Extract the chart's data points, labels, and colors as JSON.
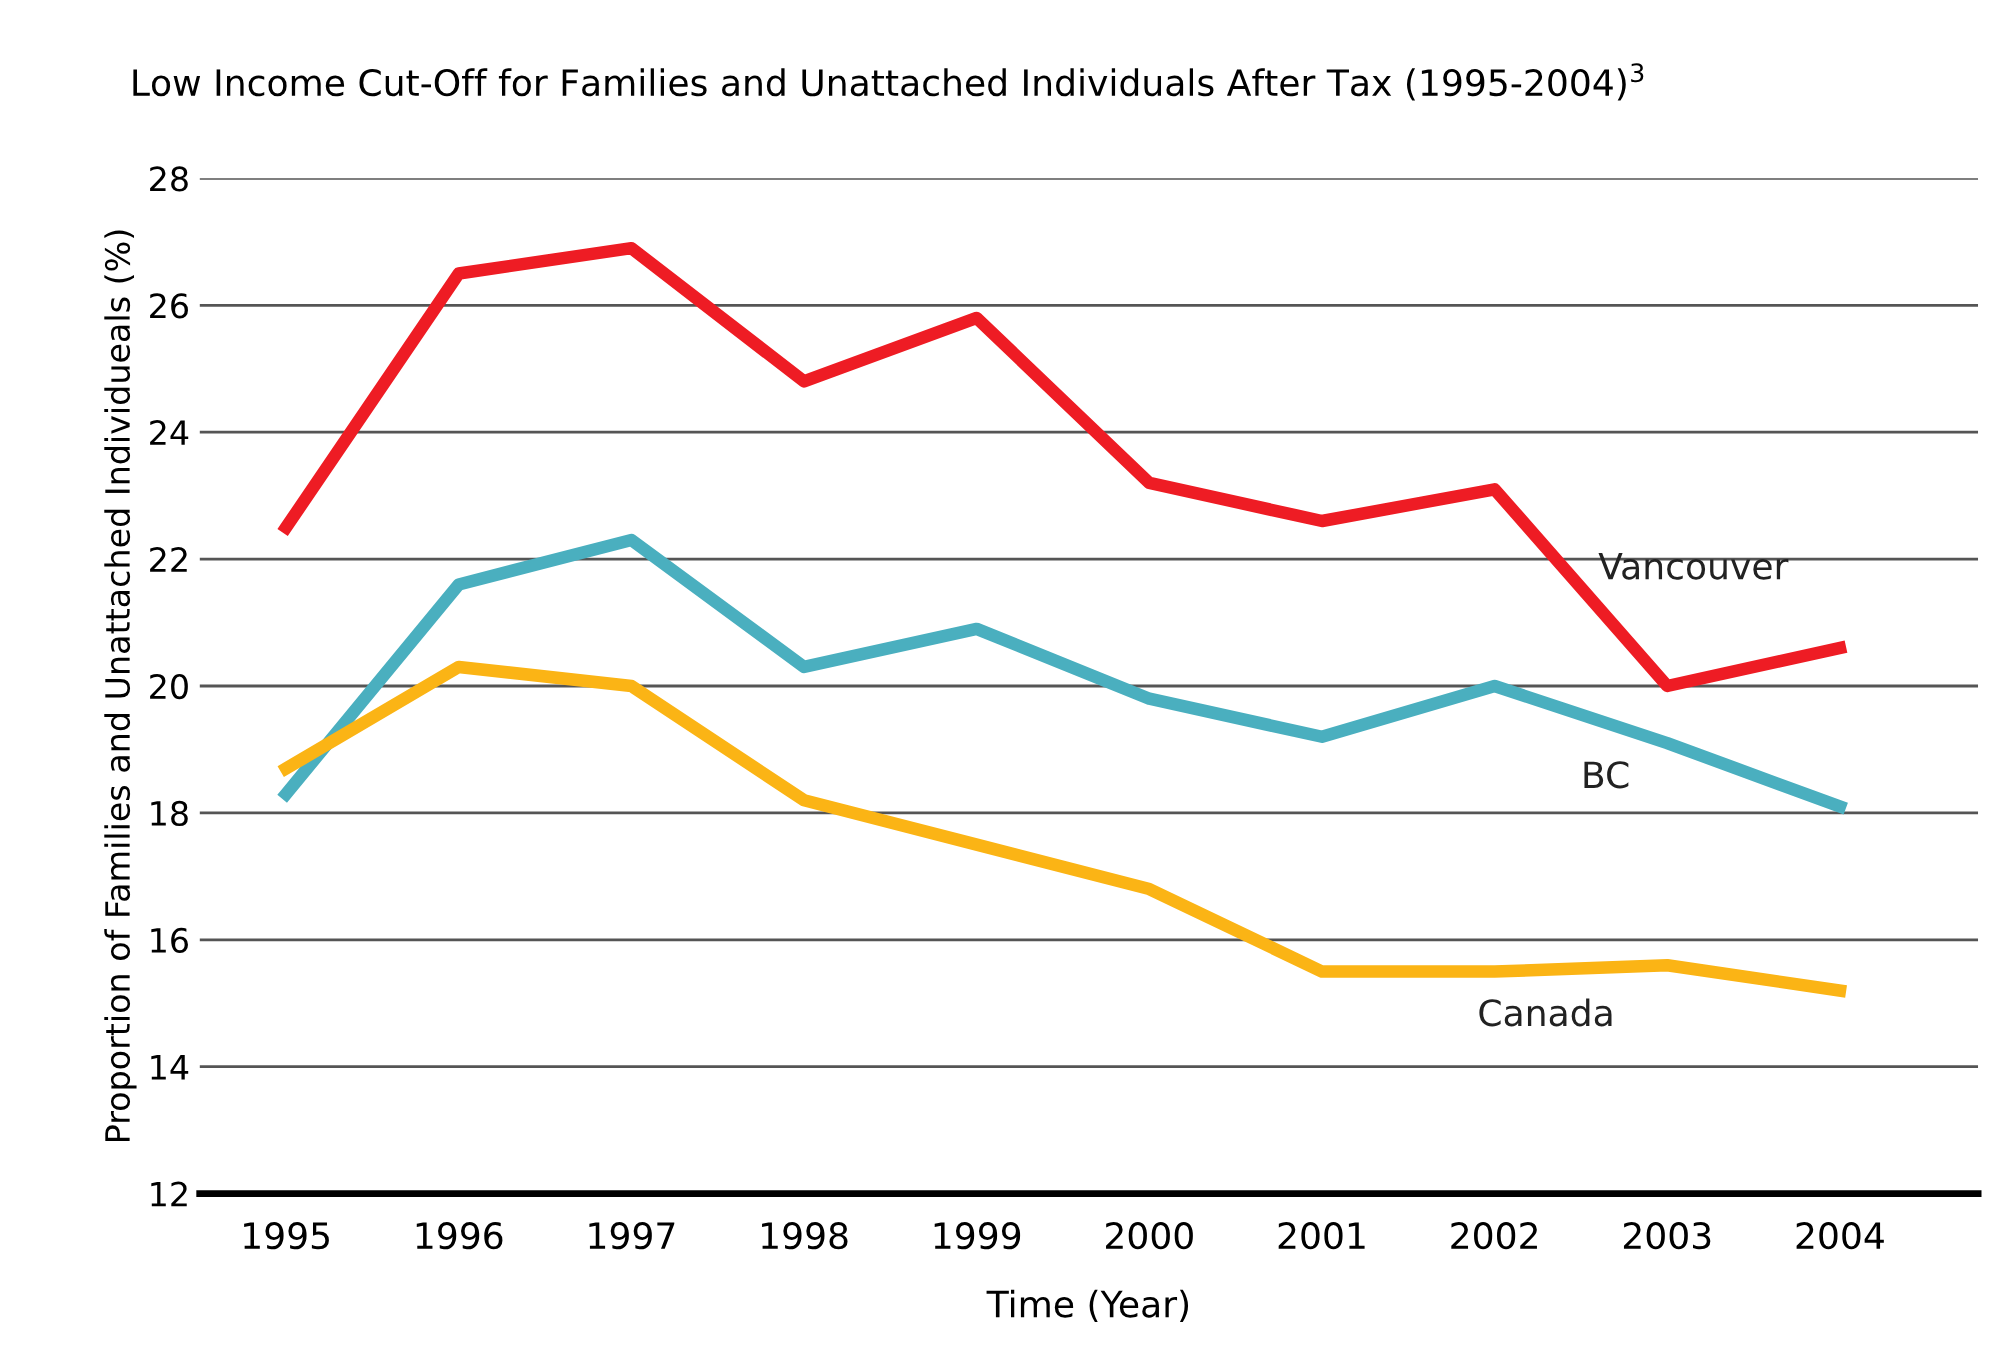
{
  "chart_data": {
    "type": "line",
    "title": "Low Income Cut-Off for Families and Unattached Individuals After Tax (1995-2004)$^{3}$",
    "xlabel": "Time (Year)",
    "ylabel": "Proportion of Families and Unattached Individueals (%)",
    "categories": [
      "1995",
      "1996",
      "1997",
      "1998",
      "1999",
      "2000",
      "2001",
      "2002",
      "2003",
      "2004"
    ],
    "ylim": [
      12,
      28
    ],
    "yticks": [
      12,
      14,
      16,
      18,
      20,
      22,
      24,
      26,
      28
    ],
    "grid": "y",
    "legend": false,
    "marker": "none",
    "line_style": "solid",
    "series": [
      {
        "name": "Vancouver",
        "color": "#ee1c24",
        "values": [
          22.5,
          26.5,
          26.9,
          24.8,
          25.8,
          23.2,
          22.6,
          23.1,
          20.0,
          20.6
        ]
      },
      {
        "name": "BC",
        "color": "#4aafbf",
        "values": [
          18.3,
          21.6,
          22.3,
          20.3,
          20.9,
          19.8,
          19.2,
          20.0,
          19.1,
          18.1
        ]
      },
      {
        "name": "Canada",
        "color": "#fbb415",
        "values": [
          18.7,
          20.3,
          20.0,
          18.2,
          17.5,
          16.8,
          15.5,
          15.5,
          15.6,
          15.2
        ]
      }
    ]
  }
}
